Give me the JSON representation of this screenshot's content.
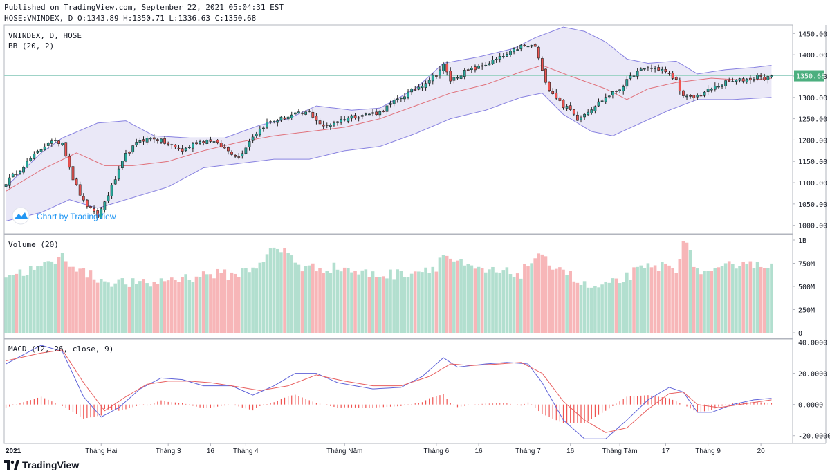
{
  "header": {
    "published": "Published on TradingView.com, September 22, 2021 05:04:31 EST",
    "ohlc": "HOSE:VNINDEX, D O:1343.89 H:1350.71 L:1336.63 C:1350.68"
  },
  "footer": {
    "brand": "TradingView"
  },
  "watermark": {
    "text": "Chart by TradingView"
  },
  "colors": {
    "up": "#26a69a",
    "down": "#ef5350",
    "up_vol": "#b2dfcf",
    "down_vol": "#f7b6b8",
    "bb_band": "#8781e0",
    "bb_basis": "#e0707a",
    "bb_fill": "#e6e4f6",
    "macd": "#5e62d8",
    "signal": "#e85f5f",
    "hist": "#ef5350",
    "price_tag": "#4caf7f"
  },
  "chart_data": [
    {
      "type": "candlestick",
      "title": "VNINDEX, D, HOSE",
      "indicator_label": "BB (20, 2)",
      "ylim": [
        980,
        1470
      ],
      "y_ticks": [
        "1450.00",
        "1400.00",
        "1350.00",
        "1300.00",
        "1250.00",
        "1200.00",
        "1150.00",
        "1100.00",
        "1050.00",
        "1000.00"
      ],
      "last_price": "1350.68",
      "last_value": 1350.68,
      "close_anchors": [
        [
          0,
          1100
        ],
        [
          5,
          1140
        ],
        [
          12,
          1195
        ],
        [
          16,
          1195
        ],
        [
          19,
          1110
        ],
        [
          22,
          1055
        ],
        [
          26,
          1020
        ],
        [
          30,
          1090
        ],
        [
          34,
          1165
        ],
        [
          38,
          1200
        ],
        [
          42,
          1205
        ],
        [
          46,
          1190
        ],
        [
          50,
          1175
        ],
        [
          54,
          1195
        ],
        [
          58,
          1200
        ],
        [
          62,
          1180
        ],
        [
          66,
          1160
        ],
        [
          70,
          1210
        ],
        [
          74,
          1240
        ],
        [
          78,
          1250
        ],
        [
          82,
          1260
        ],
        [
          86,
          1265
        ],
        [
          90,
          1230
        ],
        [
          94,
          1245
        ],
        [
          98,
          1255
        ],
        [
          102,
          1260
        ],
        [
          106,
          1265
        ],
        [
          110,
          1290
        ],
        [
          114,
          1310
        ],
        [
          118,
          1330
        ],
        [
          122,
          1355
        ],
        [
          124,
          1375
        ],
        [
          126,
          1340
        ],
        [
          130,
          1360
        ],
        [
          134,
          1370
        ],
        [
          138,
          1385
        ],
        [
          142,
          1400
        ],
        [
          146,
          1420
        ],
        [
          150,
          1420
        ],
        [
          152,
          1360
        ],
        [
          154,
          1320
        ],
        [
          156,
          1300
        ],
        [
          158,
          1280
        ],
        [
          160,
          1270
        ],
        [
          162,
          1250
        ],
        [
          166,
          1275
        ],
        [
          170,
          1300
        ],
        [
          174,
          1320
        ],
        [
          178,
          1355
        ],
        [
          182,
          1370
        ],
        [
          186,
          1365
        ],
        [
          190,
          1340
        ],
        [
          192,
          1300
        ],
        [
          195,
          1300
        ],
        [
          200,
          1320
        ],
        [
          204,
          1335
        ],
        [
          208,
          1340
        ],
        [
          212,
          1345
        ],
        [
          214,
          1355
        ],
        [
          215,
          1340
        ],
        [
          217,
          1350.68
        ]
      ],
      "bb_basis_anchors": [
        [
          0,
          1080
        ],
        [
          10,
          1130
        ],
        [
          20,
          1170
        ],
        [
          28,
          1140
        ],
        [
          36,
          1140
        ],
        [
          46,
          1150
        ],
        [
          56,
          1175
        ],
        [
          66,
          1195
        ],
        [
          76,
          1210
        ],
        [
          86,
          1220
        ],
        [
          96,
          1230
        ],
        [
          106,
          1250
        ],
        [
          116,
          1280
        ],
        [
          126,
          1310
        ],
        [
          136,
          1330
        ],
        [
          146,
          1360
        ],
        [
          152,
          1375
        ],
        [
          160,
          1350
        ],
        [
          170,
          1320
        ],
        [
          176,
          1295
        ],
        [
          182,
          1320
        ],
        [
          190,
          1335
        ],
        [
          200,
          1345
        ],
        [
          210,
          1340
        ],
        [
          217,
          1345
        ]
      ],
      "bb_upper_anchors": [
        [
          0,
          1090
        ],
        [
          10,
          1170
        ],
        [
          16,
          1205
        ],
        [
          26,
          1240
        ],
        [
          34,
          1245
        ],
        [
          42,
          1210
        ],
        [
          52,
          1205
        ],
        [
          62,
          1205
        ],
        [
          72,
          1235
        ],
        [
          80,
          1250
        ],
        [
          88,
          1280
        ],
        [
          98,
          1270
        ],
        [
          106,
          1275
        ],
        [
          116,
          1320
        ],
        [
          124,
          1380
        ],
        [
          134,
          1395
        ],
        [
          144,
          1415
        ],
        [
          150,
          1440
        ],
        [
          158,
          1465
        ],
        [
          164,
          1455
        ],
        [
          170,
          1430
        ],
        [
          176,
          1390
        ],
        [
          182,
          1380
        ],
        [
          190,
          1385
        ],
        [
          196,
          1355
        ],
        [
          204,
          1365
        ],
        [
          212,
          1370
        ],
        [
          217,
          1375
        ]
      ],
      "bb_lower_anchors": [
        [
          0,
          1010
        ],
        [
          10,
          1030
        ],
        [
          18,
          1060
        ],
        [
          26,
          1040
        ],
        [
          34,
          1060
        ],
        [
          46,
          1090
        ],
        [
          56,
          1135
        ],
        [
          66,
          1145
        ],
        [
          76,
          1155
        ],
        [
          86,
          1155
        ],
        [
          96,
          1175
        ],
        [
          106,
          1185
        ],
        [
          116,
          1215
        ],
        [
          126,
          1250
        ],
        [
          136,
          1270
        ],
        [
          146,
          1300
        ],
        [
          152,
          1310
        ],
        [
          158,
          1260
        ],
        [
          166,
          1220
        ],
        [
          172,
          1210
        ],
        [
          180,
          1240
        ],
        [
          188,
          1270
        ],
        [
          196,
          1295
        ],
        [
          206,
          1295
        ],
        [
          217,
          1300
        ]
      ]
    },
    {
      "type": "bar",
      "title": "Volume (20)",
      "ylim": [
        0,
        1000
      ],
      "y_ticks": [
        "1B",
        "750M",
        "500M",
        "250M",
        "0"
      ],
      "y_tick_values": [
        1000,
        750,
        500,
        250,
        0
      ],
      "volume_anchors": [
        [
          0,
          620
        ],
        [
          10,
          700
        ],
        [
          16,
          820
        ],
        [
          22,
          650
        ],
        [
          28,
          560
        ],
        [
          34,
          540
        ],
        [
          40,
          520
        ],
        [
          46,
          580
        ],
        [
          52,
          600
        ],
        [
          58,
          640
        ],
        [
          64,
          620
        ],
        [
          70,
          700
        ],
        [
          76,
          900
        ],
        [
          80,
          870
        ],
        [
          84,
          700
        ],
        [
          90,
          700
        ],
        [
          96,
          700
        ],
        [
          100,
          650
        ],
        [
          106,
          620
        ],
        [
          112,
          640
        ],
        [
          118,
          680
        ],
        [
          122,
          720
        ],
        [
          124,
          850
        ],
        [
          126,
          800
        ],
        [
          132,
          680
        ],
        [
          140,
          650
        ],
        [
          146,
          640
        ],
        [
          150,
          820
        ],
        [
          154,
          750
        ],
        [
          158,
          700
        ],
        [
          162,
          540
        ],
        [
          166,
          480
        ],
        [
          170,
          500
        ],
        [
          174,
          560
        ],
        [
          178,
          650
        ],
        [
          182,
          700
        ],
        [
          186,
          720
        ],
        [
          190,
          700
        ],
        [
          192,
          1000
        ],
        [
          196,
          680
        ],
        [
          200,
          620
        ],
        [
          206,
          740
        ],
        [
          210,
          780
        ],
        [
          214,
          700
        ],
        [
          217,
          780
        ]
      ]
    },
    {
      "type": "line",
      "title": "MACD (12, 26, close, 9)",
      "ylim": [
        -25,
        42
      ],
      "y_ticks": [
        "40.0000",
        "20.0000",
        "0.0000",
        "-20.0000"
      ],
      "y_tick_values": [
        40,
        20,
        0,
        -20
      ],
      "macd_anchors": [
        [
          0,
          26
        ],
        [
          10,
          38
        ],
        [
          16,
          34
        ],
        [
          22,
          5
        ],
        [
          27,
          -8
        ],
        [
          32,
          -2
        ],
        [
          38,
          10
        ],
        [
          44,
          17
        ],
        [
          50,
          16
        ],
        [
          56,
          12
        ],
        [
          64,
          12
        ],
        [
          70,
          6
        ],
        [
          76,
          12
        ],
        [
          82,
          20
        ],
        [
          88,
          20
        ],
        [
          94,
          14
        ],
        [
          104,
          10
        ],
        [
          112,
          11
        ],
        [
          118,
          18
        ],
        [
          124,
          30
        ],
        [
          128,
          24
        ],
        [
          136,
          26
        ],
        [
          142,
          27
        ],
        [
          148,
          26
        ],
        [
          152,
          14
        ],
        [
          158,
          -10
        ],
        [
          164,
          -22
        ],
        [
          170,
          -22
        ],
        [
          176,
          -10
        ],
        [
          182,
          3
        ],
        [
          188,
          11
        ],
        [
          192,
          8
        ],
        [
          196,
          -5
        ],
        [
          200,
          -5
        ],
        [
          206,
          0
        ],
        [
          212,
          3
        ],
        [
          217,
          4
        ]
      ],
      "signal_anchors": [
        [
          0,
          28
        ],
        [
          10,
          33
        ],
        [
          16,
          35
        ],
        [
          22,
          14
        ],
        [
          28,
          -4
        ],
        [
          34,
          5
        ],
        [
          40,
          13
        ],
        [
          46,
          15
        ],
        [
          52,
          15
        ],
        [
          58,
          14
        ],
        [
          64,
          12
        ],
        [
          72,
          9
        ],
        [
          80,
          12
        ],
        [
          88,
          19
        ],
        [
          96,
          15
        ],
        [
          104,
          12
        ],
        [
          112,
          12
        ],
        [
          120,
          18
        ],
        [
          126,
          26
        ],
        [
          132,
          25
        ],
        [
          140,
          26
        ],
        [
          146,
          27
        ],
        [
          152,
          20
        ],
        [
          158,
          2
        ],
        [
          164,
          -10
        ],
        [
          170,
          -18
        ],
        [
          176,
          -15
        ],
        [
          182,
          -3
        ],
        [
          188,
          7
        ],
        [
          192,
          8
        ],
        [
          196,
          0
        ],
        [
          202,
          -2
        ],
        [
          208,
          0
        ],
        [
          214,
          2
        ],
        [
          217,
          3
        ]
      ]
    }
  ],
  "x_axis": {
    "labels": [
      {
        "i": 0,
        "text": "2021",
        "bold": true
      },
      {
        "i": 27,
        "text": "Tháng Hai"
      },
      {
        "i": 46,
        "text": "Tháng 3"
      },
      {
        "i": 58,
        "text": "16"
      },
      {
        "i": 68,
        "text": "Tháng 4"
      },
      {
        "i": 96,
        "text": "Tháng Năm"
      },
      {
        "i": 122,
        "text": "Tháng 6"
      },
      {
        "i": 134,
        "text": "16"
      },
      {
        "i": 148,
        "text": "Tháng 7"
      },
      {
        "i": 160,
        "text": "16"
      },
      {
        "i": 174,
        "text": "Tháng Tám"
      },
      {
        "i": 187,
        "text": "17"
      },
      {
        "i": 199,
        "text": "Tháng 9"
      },
      {
        "i": 214,
        "text": "20"
      }
    ]
  }
}
